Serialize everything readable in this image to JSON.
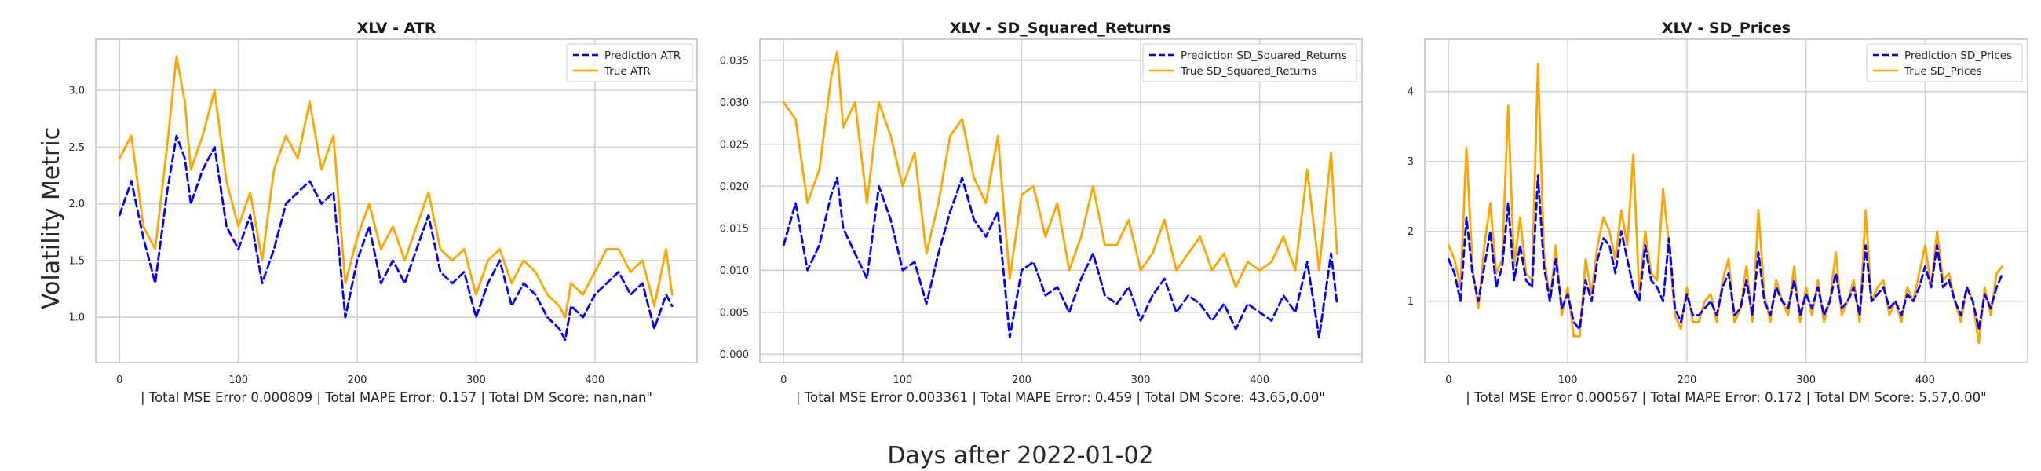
{
  "figure": {
    "ylabel": "Volatility Metric",
    "xlabel": "Days after 2022-01-02",
    "colors": {
      "prediction": "#0000ff",
      "truth": "#ffa500",
      "grid": "#cfcfcf",
      "frame": "#bdbdbd"
    }
  },
  "chart_data": [
    {
      "type": "line",
      "title": "XLV - ATR",
      "xlabel": "| Total MSE Error 0.000809 | Total MAPE Error: 0.157 | Total DM Score: nan,nan\"",
      "ylabel": "Volatility Metric",
      "xlim": [
        -20,
        486
      ],
      "ylim": [
        0.6,
        3.45
      ],
      "xticks": [
        0,
        100,
        200,
        300,
        400
      ],
      "yticks": [
        1.0,
        1.5,
        2.0,
        2.5,
        3.0
      ],
      "ytick_labels": [
        "1.0",
        "1.5",
        "2.0",
        "2.5",
        "3.0"
      ],
      "grid": true,
      "legend_position": "top-right",
      "series": [
        {
          "name": "Prediction ATR",
          "style": "dashed",
          "color": "#0000ff",
          "x": [
            0,
            10,
            20,
            30,
            40,
            48,
            55,
            60,
            70,
            80,
            90,
            100,
            110,
            120,
            130,
            140,
            150,
            160,
            170,
            180,
            190,
            200,
            210,
            220,
            230,
            240,
            250,
            260,
            270,
            280,
            290,
            300,
            310,
            320,
            330,
            340,
            350,
            360,
            370,
            375,
            380,
            390,
            400,
            410,
            420,
            430,
            440,
            450,
            460,
            465
          ],
          "y": [
            1.9,
            2.2,
            1.7,
            1.3,
            2.1,
            2.6,
            2.4,
            2.0,
            2.3,
            2.5,
            1.8,
            1.6,
            1.9,
            1.3,
            1.6,
            2.0,
            2.1,
            2.2,
            2.0,
            2.1,
            1.0,
            1.5,
            1.8,
            1.3,
            1.5,
            1.3,
            1.6,
            1.9,
            1.4,
            1.3,
            1.4,
            1.0,
            1.3,
            1.5,
            1.1,
            1.3,
            1.2,
            1.0,
            0.9,
            0.8,
            1.1,
            1.0,
            1.2,
            1.3,
            1.4,
            1.2,
            1.3,
            0.9,
            1.2,
            1.1
          ]
        },
        {
          "name": "True ATR",
          "style": "solid",
          "color": "#ffa500",
          "x": [
            0,
            10,
            20,
            30,
            40,
            48,
            55,
            60,
            70,
            80,
            90,
            100,
            110,
            120,
            130,
            140,
            150,
            160,
            170,
            180,
            190,
            200,
            210,
            220,
            230,
            240,
            250,
            260,
            270,
            280,
            290,
            300,
            310,
            320,
            330,
            340,
            350,
            360,
            370,
            375,
            380,
            390,
            400,
            410,
            420,
            430,
            440,
            450,
            460,
            465
          ],
          "y": [
            2.4,
            2.6,
            1.8,
            1.6,
            2.5,
            3.3,
            2.9,
            2.3,
            2.6,
            3.0,
            2.2,
            1.8,
            2.1,
            1.5,
            2.3,
            2.6,
            2.4,
            2.9,
            2.3,
            2.6,
            1.3,
            1.7,
            2.0,
            1.6,
            1.8,
            1.5,
            1.8,
            2.1,
            1.6,
            1.5,
            1.6,
            1.2,
            1.5,
            1.6,
            1.3,
            1.5,
            1.4,
            1.2,
            1.1,
            1.0,
            1.3,
            1.2,
            1.4,
            1.6,
            1.6,
            1.4,
            1.5,
            1.1,
            1.6,
            1.2
          ]
        }
      ]
    },
    {
      "type": "line",
      "title": "XLV - SD_Squared_Returns",
      "xlabel": "| Total MSE Error 0.003361 | Total MAPE Error: 0.459 | Total DM Score: 43.65,0.00\"",
      "ylabel": "",
      "xlim": [
        -20,
        486
      ],
      "ylim": [
        -0.001,
        0.0375
      ],
      "xticks": [
        0,
        100,
        200,
        300,
        400
      ],
      "yticks": [
        0.0,
        0.005,
        0.01,
        0.015,
        0.02,
        0.025,
        0.03,
        0.035
      ],
      "ytick_labels": [
        "0.000",
        "0.005",
        "0.010",
        "0.015",
        "0.020",
        "0.025",
        "0.030",
        "0.035"
      ],
      "grid": true,
      "legend_position": "top-right",
      "series": [
        {
          "name": "Prediction SD_Squared_Returns",
          "style": "dashed",
          "color": "#0000ff",
          "x": [
            0,
            10,
            20,
            30,
            40,
            45,
            50,
            60,
            70,
            80,
            90,
            100,
            110,
            120,
            130,
            140,
            150,
            160,
            170,
            180,
            190,
            200,
            210,
            220,
            230,
            240,
            250,
            260,
            270,
            280,
            290,
            300,
            310,
            320,
            330,
            340,
            350,
            360,
            370,
            380,
            390,
            400,
            410,
            420,
            430,
            440,
            450,
            460,
            465
          ],
          "y": [
            0.013,
            0.018,
            0.01,
            0.013,
            0.019,
            0.021,
            0.015,
            0.012,
            0.009,
            0.02,
            0.016,
            0.01,
            0.011,
            0.006,
            0.012,
            0.017,
            0.021,
            0.016,
            0.014,
            0.017,
            0.002,
            0.01,
            0.011,
            0.007,
            0.008,
            0.005,
            0.009,
            0.012,
            0.007,
            0.006,
            0.008,
            0.004,
            0.007,
            0.009,
            0.005,
            0.007,
            0.006,
            0.004,
            0.006,
            0.003,
            0.006,
            0.005,
            0.004,
            0.007,
            0.005,
            0.011,
            0.002,
            0.012,
            0.006
          ]
        },
        {
          "name": "True SD_Squared_Returns",
          "style": "solid",
          "color": "#ffa500",
          "x": [
            0,
            10,
            20,
            30,
            40,
            45,
            50,
            60,
            70,
            80,
            90,
            100,
            110,
            120,
            130,
            140,
            150,
            160,
            170,
            180,
            190,
            200,
            210,
            220,
            230,
            240,
            250,
            260,
            270,
            280,
            290,
            300,
            310,
            320,
            330,
            340,
            350,
            360,
            370,
            380,
            390,
            400,
            410,
            420,
            430,
            440,
            450,
            460,
            465
          ],
          "y": [
            0.03,
            0.028,
            0.018,
            0.022,
            0.033,
            0.036,
            0.027,
            0.03,
            0.018,
            0.03,
            0.026,
            0.02,
            0.024,
            0.012,
            0.018,
            0.026,
            0.028,
            0.021,
            0.018,
            0.026,
            0.009,
            0.019,
            0.02,
            0.014,
            0.018,
            0.01,
            0.014,
            0.02,
            0.013,
            0.013,
            0.016,
            0.01,
            0.012,
            0.016,
            0.01,
            0.012,
            0.014,
            0.01,
            0.012,
            0.008,
            0.011,
            0.01,
            0.011,
            0.014,
            0.01,
            0.022,
            0.01,
            0.024,
            0.012
          ]
        }
      ]
    },
    {
      "type": "line",
      "title": "XLV - SD_Prices",
      "xlabel": "| Total MSE Error 0.000567 | Total MAPE Error: 0.172 | Total DM Score: 5.57,0.00\"",
      "ylabel": "",
      "xlim": [
        -20,
        486
      ],
      "ylim": [
        0.12,
        4.75
      ],
      "xticks": [
        0,
        100,
        200,
        300,
        400
      ],
      "yticks": [
        1,
        2,
        3,
        4
      ],
      "ytick_labels": [
        "1",
        "2",
        "3",
        "4"
      ],
      "grid": true,
      "legend_position": "top-right",
      "series": [
        {
          "name": "Prediction SD_Prices",
          "style": "dashed",
          "color": "#0000ff",
          "x": [
            0,
            5,
            10,
            15,
            20,
            25,
            30,
            35,
            40,
            45,
            50,
            55,
            60,
            65,
            70,
            75,
            80,
            85,
            90,
            95,
            100,
            105,
            110,
            115,
            120,
            125,
            130,
            135,
            140,
            145,
            150,
            155,
            160,
            165,
            170,
            175,
            180,
            185,
            190,
            195,
            200,
            205,
            210,
            215,
            220,
            225,
            230,
            235,
            240,
            245,
            250,
            255,
            260,
            265,
            270,
            275,
            280,
            285,
            290,
            295,
            300,
            305,
            310,
            315,
            320,
            325,
            330,
            335,
            340,
            345,
            350,
            355,
            360,
            365,
            370,
            375,
            380,
            385,
            390,
            395,
            400,
            405,
            410,
            415,
            420,
            425,
            430,
            435,
            440,
            445,
            450,
            455,
            460,
            465
          ],
          "y": [
            1.6,
            1.4,
            1.0,
            2.2,
            1.4,
            1.0,
            1.5,
            2.0,
            1.2,
            1.5,
            2.4,
            1.3,
            1.8,
            1.3,
            1.2,
            2.8,
            1.5,
            1.0,
            1.6,
            0.9,
            1.1,
            0.7,
            0.6,
            1.3,
            1.0,
            1.6,
            1.9,
            1.8,
            1.4,
            2.0,
            1.6,
            1.2,
            1.0,
            1.8,
            1.3,
            1.2,
            1.0,
            1.9,
            0.9,
            0.7,
            1.1,
            0.8,
            0.8,
            0.9,
            1.0,
            0.8,
            1.2,
            1.4,
            0.8,
            0.9,
            1.3,
            0.8,
            1.7,
            1.0,
            0.8,
            1.2,
            1.0,
            0.9,
            1.3,
            0.8,
            1.1,
            0.9,
            1.2,
            0.8,
            1.0,
            1.4,
            0.9,
            1.0,
            1.2,
            0.8,
            1.8,
            1.0,
            1.1,
            1.2,
            0.9,
            1.0,
            0.8,
            1.1,
            1.0,
            1.2,
            1.5,
            1.2,
            1.8,
            1.2,
            1.3,
            1.0,
            0.8,
            1.2,
            1.0,
            0.6,
            1.1,
            0.9,
            1.2,
            1.4
          ]
        },
        {
          "name": "True SD_Prices",
          "style": "solid",
          "color": "#ffa500",
          "x": [
            0,
            5,
            10,
            15,
            20,
            25,
            30,
            35,
            40,
            45,
            50,
            55,
            60,
            65,
            70,
            75,
            80,
            85,
            90,
            95,
            100,
            105,
            110,
            115,
            120,
            125,
            130,
            135,
            140,
            145,
            150,
            155,
            160,
            165,
            170,
            175,
            180,
            185,
            190,
            195,
            200,
            205,
            210,
            215,
            220,
            225,
            230,
            235,
            240,
            245,
            250,
            255,
            260,
            265,
            270,
            275,
            280,
            285,
            290,
            295,
            300,
            305,
            310,
            315,
            320,
            325,
            330,
            335,
            340,
            345,
            350,
            355,
            360,
            365,
            370,
            375,
            380,
            385,
            390,
            395,
            400,
            405,
            410,
            415,
            420,
            425,
            430,
            435,
            440,
            445,
            450,
            455,
            460,
            465
          ],
          "y": [
            1.8,
            1.6,
            1.2,
            3.2,
            1.5,
            0.9,
            1.8,
            2.4,
            1.4,
            1.6,
            3.8,
            1.5,
            2.2,
            1.4,
            1.3,
            4.4,
            1.7,
            1.0,
            1.8,
            0.8,
            1.2,
            0.5,
            0.5,
            1.6,
            1.1,
            1.8,
            2.2,
            2.0,
            1.6,
            2.3,
            1.8,
            3.1,
            1.1,
            2.0,
            1.4,
            1.3,
            2.6,
            1.8,
            0.8,
            0.6,
            1.2,
            0.7,
            0.7,
            1.0,
            1.1,
            0.7,
            1.3,
            1.6,
            0.7,
            0.9,
            1.5,
            0.7,
            2.3,
            1.1,
            0.7,
            1.3,
            1.0,
            0.8,
            1.5,
            0.7,
            1.2,
            0.8,
            1.3,
            0.7,
            1.0,
            1.7,
            0.8,
            1.0,
            1.3,
            0.7,
            2.3,
            1.0,
            1.2,
            1.3,
            0.8,
            1.0,
            0.7,
            1.2,
            1.0,
            1.4,
            1.8,
            1.2,
            2.0,
            1.3,
            1.4,
            1.0,
            0.7,
            1.2,
            1.0,
            0.4,
            1.2,
            0.8,
            1.4,
            1.5
          ]
        }
      ]
    }
  ]
}
